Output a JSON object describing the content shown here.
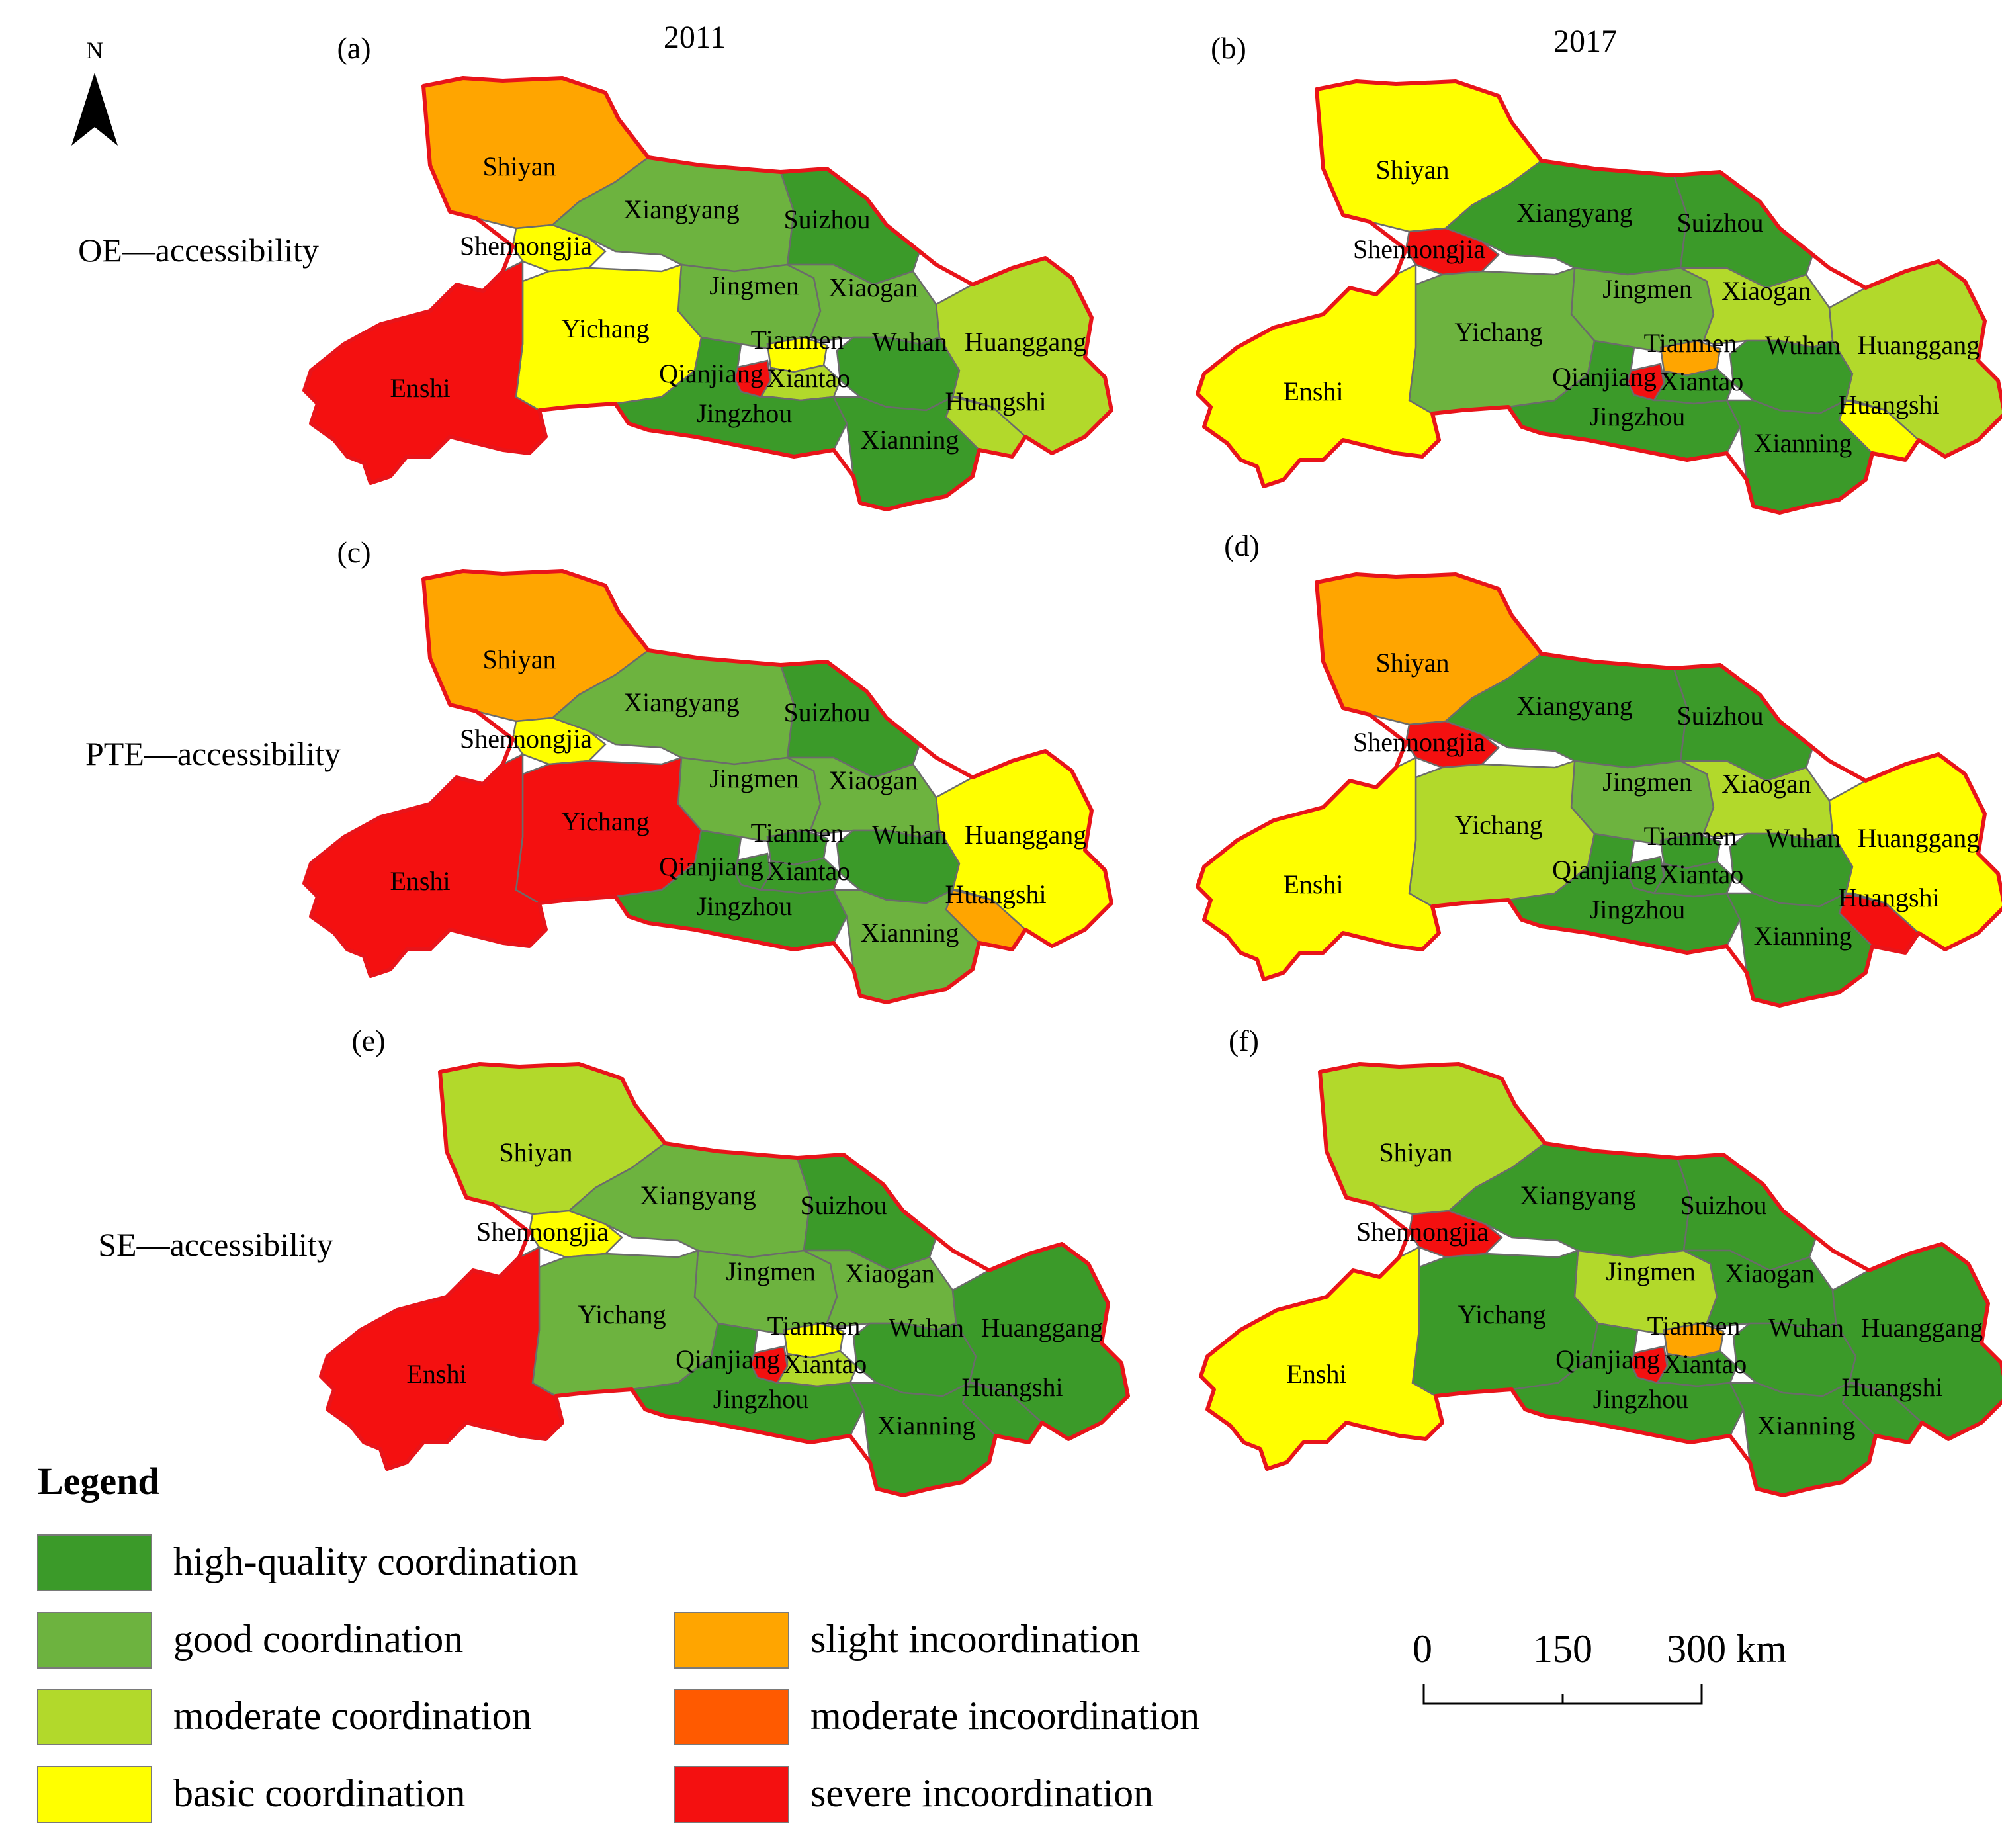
{
  "header": {
    "year_left": "2011",
    "year_right": "2017"
  },
  "north_arrow": {
    "letter": "N"
  },
  "rows": [
    "OE—accessibility",
    "PTE—accessibility",
    "SE—accessibility"
  ],
  "legend": {
    "title": "Legend",
    "classes": [
      {
        "key": "hq",
        "label": "high-quality coordination",
        "color": "#3b9a29"
      },
      {
        "key": "good",
        "label": "good coordination",
        "color": "#6db33f"
      },
      {
        "key": "mod",
        "label": "moderate coordination",
        "color": "#b2d92b"
      },
      {
        "key": "basic",
        "label": "basic coordination",
        "color": "#ffff00"
      },
      {
        "key": "sli",
        "label": "slight incoordination",
        "color": "#ffa500"
      },
      {
        "key": "modi",
        "label": "moderate incoordination",
        "color": "#ff5a00"
      },
      {
        "key": "sev",
        "label": "severe incoordination",
        "color": "#f41010"
      }
    ]
  },
  "scale_bar": {
    "ticks": [
      "0",
      "150",
      "300 km"
    ]
  },
  "regions": [
    "Shiyan",
    "Xiangyang",
    "Suizhou",
    "Shennongjia",
    "Jingmen",
    "Xiaogan",
    "Yichang",
    "Tianmen",
    "Wuhan",
    "Huanggang",
    "Enshi",
    "Qianjiang",
    "Xiantao",
    "Jingzhou",
    "Huangshi",
    "Xianning"
  ],
  "panels": [
    {
      "id": "a",
      "label": "(a)",
      "classes": {
        "Shiyan": "sli",
        "Xiangyang": "good",
        "Suizhou": "hq",
        "Shennongjia": "basic",
        "Jingmen": "good",
        "Xiaogan": "good",
        "Yichang": "basic",
        "Tianmen": "basic",
        "Wuhan": "hq",
        "Huanggang": "mod",
        "Enshi": "sev",
        "Qianjiang": "sev",
        "Xiantao": "mod",
        "Jingzhou": "hq",
        "Huangshi": "mod",
        "Xianning": "hq"
      }
    },
    {
      "id": "b",
      "label": "(b)",
      "classes": {
        "Shiyan": "basic",
        "Xiangyang": "hq",
        "Suizhou": "hq",
        "Shennongjia": "sev",
        "Jingmen": "good",
        "Xiaogan": "mod",
        "Yichang": "good",
        "Tianmen": "sli",
        "Wuhan": "hq",
        "Huanggang": "mod",
        "Enshi": "basic",
        "Qianjiang": "sev",
        "Xiantao": "hq",
        "Jingzhou": "hq",
        "Huangshi": "basic",
        "Xianning": "hq"
      }
    },
    {
      "id": "c",
      "label": "(c)",
      "classes": {
        "Shiyan": "sli",
        "Xiangyang": "good",
        "Suizhou": "hq",
        "Shennongjia": "basic",
        "Jingmen": "good",
        "Xiaogan": "good",
        "Yichang": "sev",
        "Tianmen": "hq",
        "Wuhan": "hq",
        "Huanggang": "basic",
        "Enshi": "sev",
        "Qianjiang": "hq",
        "Xiantao": "hq",
        "Jingzhou": "hq",
        "Huangshi": "sli",
        "Xianning": "good"
      }
    },
    {
      "id": "d",
      "label": "(d)",
      "classes": {
        "Shiyan": "sli",
        "Xiangyang": "hq",
        "Suizhou": "hq",
        "Shennongjia": "sev",
        "Jingmen": "good",
        "Xiaogan": "mod",
        "Yichang": "mod",
        "Tianmen": "hq",
        "Wuhan": "hq",
        "Huanggang": "basic",
        "Enshi": "basic",
        "Qianjiang": "hq",
        "Xiantao": "hq",
        "Jingzhou": "hq",
        "Huangshi": "sev",
        "Xianning": "hq"
      }
    },
    {
      "id": "e",
      "label": "(e)",
      "classes": {
        "Shiyan": "mod",
        "Xiangyang": "good",
        "Suizhou": "hq",
        "Shennongjia": "basic",
        "Jingmen": "good",
        "Xiaogan": "good",
        "Yichang": "good",
        "Tianmen": "basic",
        "Wuhan": "hq",
        "Huanggang": "hq",
        "Enshi": "sev",
        "Qianjiang": "sev",
        "Xiantao": "mod",
        "Jingzhou": "hq",
        "Huangshi": "hq",
        "Xianning": "hq"
      }
    },
    {
      "id": "f",
      "label": "(f)",
      "classes": {
        "Shiyan": "mod",
        "Xiangyang": "hq",
        "Suizhou": "hq",
        "Shennongjia": "sev",
        "Jingmen": "mod",
        "Xiaogan": "hq",
        "Yichang": "hq",
        "Tianmen": "sli",
        "Wuhan": "hq",
        "Huanggang": "hq",
        "Enshi": "basic",
        "Qianjiang": "sev",
        "Xiantao": "hq",
        "Jingzhou": "hq",
        "Huangshi": "hq",
        "Xianning": "hq"
      }
    }
  ]
}
